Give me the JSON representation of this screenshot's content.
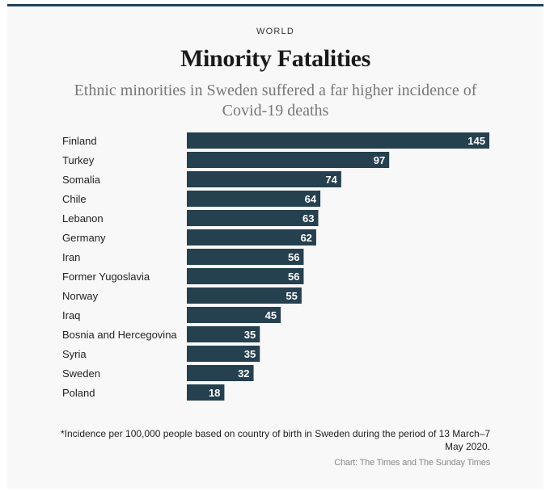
{
  "header": {
    "section": "WORLD",
    "title": "Minority Fatalities",
    "subtitle": "Ethnic minorities in Sweden suffered a far higher incidence of Covid-19 deaths"
  },
  "footer": {
    "footnote": "*Incidence per 100,000 people based on country of birth in Sweden during the period of 13 March–7 May 2020.",
    "credit": "Chart: The Times and The Sunday Times"
  },
  "colors": {
    "bar": "#25404f",
    "accent_border": "#1f4257",
    "background": "#f8f8f8"
  },
  "chart_data": {
    "type": "bar",
    "orientation": "horizontal",
    "title": "Minority Fatalities",
    "subtitle": "Ethnic minorities in Sweden suffered a far higher incidence of Covid-19 deaths",
    "xlabel": "",
    "ylabel": "",
    "unit": "Incidence per 100,000 people",
    "categories": [
      "Finland",
      "Turkey",
      "Somalia",
      "Chile",
      "Lebanon",
      "Germany",
      "Iran",
      "Former Yugoslavia",
      "Norway",
      "Iraq",
      "Bosnia and Hercegovina",
      "Syria",
      "Sweden",
      "Poland"
    ],
    "values": [
      145,
      97,
      74,
      64,
      63,
      62,
      56,
      56,
      55,
      45,
      35,
      35,
      32,
      18
    ],
    "xlim": [
      0,
      145
    ],
    "grid": false,
    "legend": "none",
    "data_labels": "inside-end"
  }
}
